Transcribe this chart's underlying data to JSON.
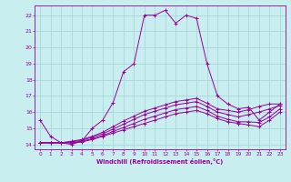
{
  "xlabel": "Windchill (Refroidissement éolien,°C)",
  "background_color": "#c8eef0",
  "grid_color": "#a8d8da",
  "line_color": "#990099",
  "xlim": [
    -0.5,
    23.5
  ],
  "ylim": [
    13.7,
    22.6
  ],
  "yticks": [
    14,
    15,
    16,
    17,
    18,
    19,
    20,
    21,
    22
  ],
  "xtick_labels": [
    "0",
    "1",
    "2",
    "3",
    "4",
    "5",
    "6",
    "7",
    "8",
    "9",
    "10",
    "11",
    "12",
    "13",
    "14",
    "15",
    "16",
    "17",
    "18",
    "19",
    "20",
    "21",
    "22",
    "23"
  ],
  "series": [
    [
      15.5,
      14.5,
      14.1,
      14.0,
      14.2,
      15.0,
      15.5,
      16.6,
      18.5,
      19.0,
      22.0,
      22.0,
      22.3,
      21.5,
      22.0,
      21.8,
      19.0,
      17.0,
      16.5,
      16.2,
      16.3,
      15.5,
      16.0,
      16.5
    ],
    [
      14.1,
      14.1,
      14.1,
      14.1,
      14.15,
      14.3,
      14.5,
      14.7,
      14.9,
      15.1,
      15.3,
      15.5,
      15.7,
      15.9,
      16.0,
      16.1,
      15.9,
      15.6,
      15.4,
      15.3,
      15.2,
      15.1,
      15.5,
      16.0
    ],
    [
      14.1,
      14.1,
      14.1,
      14.1,
      14.2,
      14.35,
      14.55,
      14.8,
      15.05,
      15.3,
      15.55,
      15.75,
      15.95,
      16.15,
      16.25,
      16.35,
      16.1,
      15.75,
      15.55,
      15.4,
      15.4,
      15.35,
      15.7,
      16.2
    ],
    [
      14.1,
      14.1,
      14.1,
      14.15,
      14.25,
      14.45,
      14.65,
      14.95,
      15.25,
      15.55,
      15.85,
      16.05,
      16.25,
      16.45,
      16.55,
      16.65,
      16.35,
      16.0,
      15.85,
      15.7,
      15.85,
      16.0,
      16.2,
      16.4
    ],
    [
      14.1,
      14.1,
      14.1,
      14.2,
      14.3,
      14.5,
      14.75,
      15.1,
      15.45,
      15.75,
      16.05,
      16.25,
      16.45,
      16.65,
      16.75,
      16.85,
      16.55,
      16.2,
      16.1,
      16.0,
      16.15,
      16.35,
      16.5,
      16.5
    ]
  ]
}
